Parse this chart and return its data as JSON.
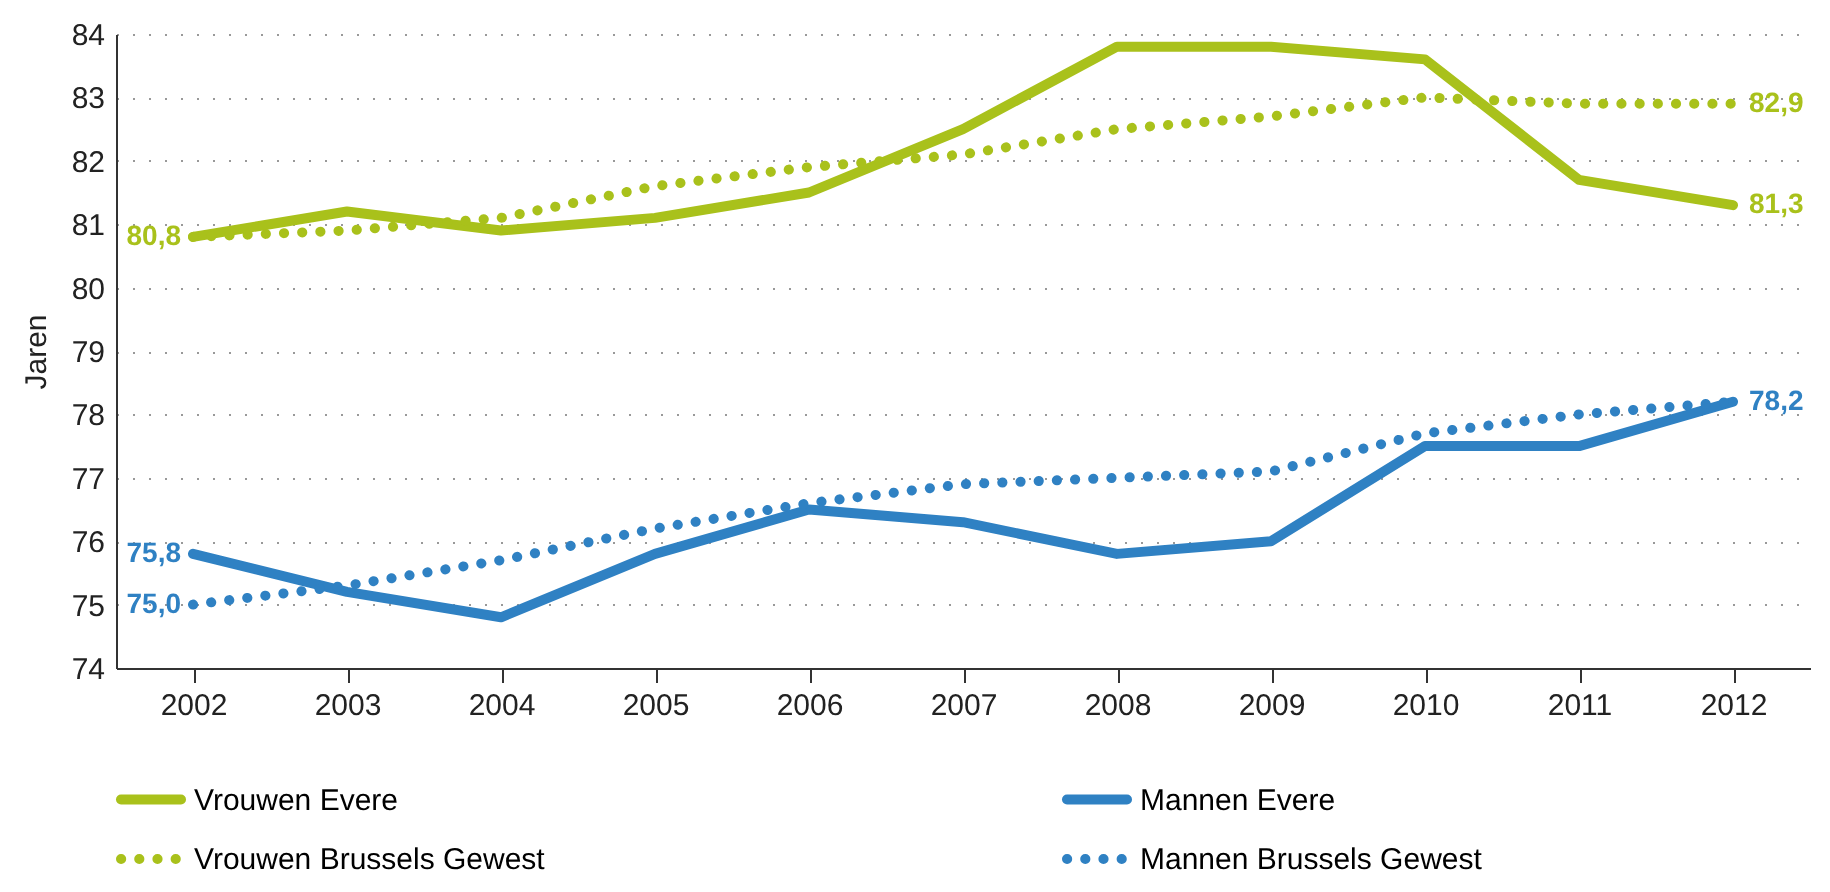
{
  "chart_data": {
    "type": "line",
    "ylabel": "Jaren",
    "categories": [
      "2002",
      "2003",
      "2004",
      "2005",
      "2006",
      "2007",
      "2008",
      "2009",
      "2010",
      "2011",
      "2012"
    ],
    "ylim": [
      74,
      84
    ],
    "yticks": [
      74,
      75,
      76,
      77,
      78,
      79,
      80,
      81,
      82,
      83,
      84
    ],
    "grid": "y",
    "legend": "bottom",
    "marker": "none",
    "series": [
      {
        "name": "Vrouwen Evere",
        "color": "#a9c11b",
        "line_style": "solid",
        "values": [
          80.8,
          81.2,
          80.9,
          81.1,
          81.5,
          82.5,
          83.8,
          83.8,
          83.6,
          81.7,
          81.3
        ],
        "value_labels": [
          "80,8",
          null,
          null,
          null,
          null,
          null,
          null,
          null,
          null,
          null,
          "81,3"
        ]
      },
      {
        "name": "Mannen Evere",
        "color": "#2f81c3",
        "line_style": "solid",
        "values": [
          75.8,
          75.2,
          74.8,
          75.8,
          76.5,
          76.3,
          75.8,
          76.0,
          77.5,
          77.5,
          78.2
        ],
        "value_labels": [
          "75,8",
          null,
          null,
          null,
          null,
          null,
          null,
          null,
          null,
          null,
          "78,2"
        ]
      },
      {
        "name": "Vrouwen Brussels Gewest",
        "color": "#a9c11b",
        "line_style": "dotted",
        "values": [
          80.8,
          80.9,
          81.1,
          81.6,
          81.9,
          82.1,
          82.5,
          82.7,
          83.0,
          82.9,
          82.9
        ],
        "value_labels": [
          null,
          null,
          null,
          null,
          null,
          null,
          null,
          null,
          null,
          null,
          "82,9"
        ]
      },
      {
        "name": "Mannen Brussels Gewest",
        "color": "#2f81c3",
        "line_style": "dotted",
        "values": [
          75.0,
          75.3,
          75.7,
          76.2,
          76.6,
          76.9,
          77.0,
          77.1,
          77.7,
          78.0,
          78.2
        ],
        "value_labels": [
          "75,0",
          null,
          null,
          null,
          null,
          null,
          null,
          null,
          null,
          null,
          null
        ]
      }
    ]
  }
}
